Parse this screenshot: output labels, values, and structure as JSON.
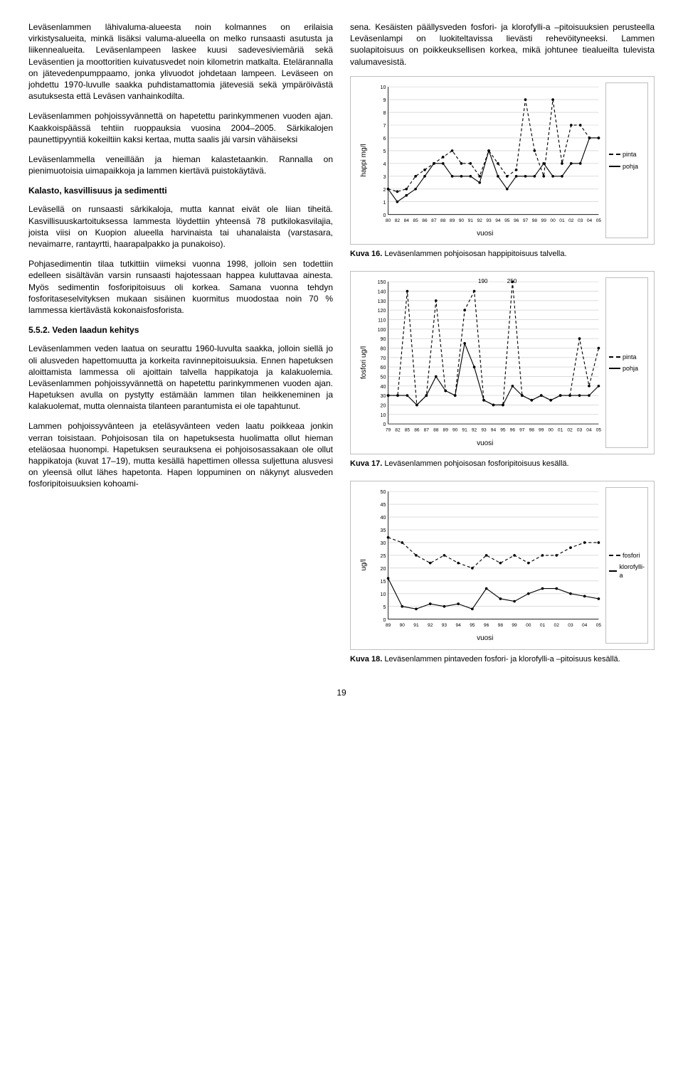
{
  "left": {
    "p1": "Leväsenlammen lähivaluma-alueesta noin kolmannes on erilaisia virkistysalueita, minkä lisäksi valuma-alueella on melko runsaasti asutusta ja liikennealueita. Leväsenlampeen laskee kuusi sadevesiviemäriä sekä Leväsentien ja moottoritien kuivatusvedet noin kilometrin matkalta. Etelärannalla on jätevedenpumppaamo, jonka ylivuodot johdetaan lampeen. Leväseen on johdettu 1970-luvulle saakka puhdistamattomia jätevesiä sekä ympäröivästä asutuksesta että Leväsen vanhainkodilta.",
    "p2": "Leväsenlammen pohjoissyvännettä on hapetettu parinkymmenen vuoden ajan. Kaakkoispäässä tehtiin ruoppauksia vuosina 2004–2005. Särkikalojen paunettipyyntiä kokeiltiin kaksi kertaa, mutta saalis jäi varsin vähäiseksi",
    "p3": "Leväsenlammella veneillään ja hieman kalastetaankin. Rannalla on pienimuotoisia uimapaikkoja ja lammen kiertävä puistokäytävä.",
    "h1": "Kalasto, kasvillisuus ja sedimentti",
    "p4": "Leväsellä on runsaasti särkikaloja, mutta kannat eivät ole liian tiheitä. Kasvillisuuskartoituksessa lammesta löydettiin yhteensä 78 putkilokasvilajia, joista viisi on Kuopion alueella harvinaista tai uhanalaista (varstasara, nevaimarre, rantayrtti, haarapalpakko ja punakoiso).",
    "p5": "Pohjasedimentin tilaa tutkittiin viimeksi vuonna 1998, jolloin sen todettiin edelleen sisältävän varsin runsaasti hajotessaan happea kuluttavaa ainesta. Myös sedimentin fosforipitoisuus oli korkea. Samana vuonna tehdyn fosforitaseselvityksen mukaan sisäinen kuormitus muodostaa noin 70 % lammessa kiertävästä kokonaisfosforista.",
    "h2": "5.5.2. Veden laadun kehitys",
    "p6": "Leväsenlammen veden laatua on seurattu 1960-luvulta saakka, jolloin siellä jo oli alusveden hapettomuutta ja korkeita ravinnepitoisuuksia. Ennen hapetuksen aloittamista lammessa oli ajoittain talvella happikatoja ja kalakuolemia. Leväsenlammen pohjoissyvännettä on hapetettu parinkymmenen vuoden ajan. Hapetuksen avulla on pystytty estämään lammen tilan heikkeneminen ja kalakuolemat, mutta olennaista tilanteen parantumista ei ole tapahtunut.",
    "p7": "Lammen pohjoissyvänteen ja eteläsyvänteen veden laatu poikkeaa jonkin verran toisistaan. Pohjoisosan tila on hapetuksesta huolimatta ollut hieman eteläosaa huonompi. Hapetuksen seurauksena ei pohjoisosassakaan ole ollut happikatoja (kuvat 17–19), mutta kesällä hapettimen ollessa suljettuna alusvesi on yleensä ollut lähes hapetonta. Hapen loppuminen on näkynyt alusveden fosforipitoisuuksien kohoami-"
  },
  "right": {
    "p1": "sena. Kesäisten päällysveden fosfori- ja klorofylli-a –pitoisuuksien perusteella Leväsenlampi on luokiteltavissa lievästi rehevöityneeksi. Lammen suolapitoisuus on poikkeuksellisen korkea, mikä johtunee tiealueilta tulevista valumavesistä."
  },
  "chart1": {
    "ylabel": "happi mg/l",
    "xlabel": "vuosi",
    "yticks": [
      0,
      1,
      2,
      3,
      4,
      5,
      6,
      7,
      8,
      9,
      10
    ],
    "ymax": 10,
    "xtick_labels": [
      "80",
      "82",
      "84",
      "85",
      "86",
      "87",
      "88",
      "89",
      "90",
      "91",
      "92",
      "93",
      "94",
      "95",
      "96",
      "97",
      "98",
      "99",
      "00",
      "01",
      "02",
      "03",
      "04",
      "05"
    ],
    "legend": [
      {
        "label": "pinta",
        "style": "dashed"
      },
      {
        "label": "pohja",
        "style": "solid"
      }
    ],
    "series_pinta": [
      2,
      1.8,
      2,
      3,
      3.5,
      4,
      4.5,
      5,
      4,
      4,
      3,
      5,
      4,
      3,
      3.5,
      9,
      5,
      3,
      9,
      4,
      7,
      7,
      6,
      6
    ],
    "series_pohja": [
      2,
      1,
      1.5,
      2,
      3,
      4,
      4,
      3,
      3,
      3,
      2.5,
      5,
      3,
      2,
      3,
      3,
      3,
      4,
      3,
      3,
      4,
      4,
      6,
      6
    ],
    "caption_label": "Kuva 16.",
    "caption_text": "Leväsenlammen pohjoisosan happipitoisuus talvella."
  },
  "chart2": {
    "ylabel": "fosfori ug/l",
    "xlabel": "vuosi",
    "yticks": [
      0,
      10,
      20,
      30,
      40,
      50,
      60,
      70,
      80,
      90,
      100,
      110,
      120,
      130,
      140,
      150
    ],
    "ymax": 150,
    "outliers": [
      "190",
      "250"
    ],
    "xtick_labels": [
      "79",
      "82",
      "85",
      "86",
      "87",
      "88",
      "89",
      "90",
      "91",
      "92",
      "93",
      "94",
      "95",
      "96",
      "97",
      "98",
      "99",
      "00",
      "01",
      "02",
      "03",
      "04",
      "05"
    ],
    "legend": [
      {
        "label": "pinta",
        "style": "dashed"
      },
      {
        "label": "pohja",
        "style": "solid"
      }
    ],
    "series_pinta": [
      30,
      30,
      140,
      20,
      30,
      130,
      35,
      30,
      120,
      140,
      25,
      20,
      20,
      150,
      30,
      25,
      30,
      25,
      30,
      30,
      90,
      40,
      80
    ],
    "series_pohja": [
      30,
      30,
      30,
      20,
      30,
      50,
      35,
      30,
      85,
      60,
      25,
      20,
      20,
      40,
      30,
      25,
      30,
      25,
      30,
      30,
      30,
      30,
      40
    ],
    "caption_label": "Kuva 17.",
    "caption_text": "Leväsenlammen pohjoisosan fosforipitoisuus kesällä."
  },
  "chart3": {
    "ylabel": "ug/l",
    "xlabel": "vuosi",
    "yticks": [
      0,
      5,
      10,
      15,
      20,
      25,
      30,
      35,
      40,
      45,
      50
    ],
    "ymax": 50,
    "xtick_labels": [
      "89",
      "90",
      "91",
      "92",
      "93",
      "94",
      "95",
      "96",
      "98",
      "99",
      "00",
      "01",
      "02",
      "03",
      "04",
      "05"
    ],
    "legend": [
      {
        "label": "fosfori",
        "style": "dashed"
      },
      {
        "label": "klorofylli-a",
        "style": "solid"
      }
    ],
    "series_fosfori": [
      32,
      30,
      25,
      22,
      25,
      22,
      20,
      25,
      22,
      25,
      22,
      25,
      25,
      28,
      30,
      30
    ],
    "series_kloro": [
      16,
      5,
      4,
      6,
      5,
      6,
      4,
      12,
      8,
      7,
      10,
      12,
      12,
      10,
      9,
      8
    ],
    "caption_label": "Kuva 18.",
    "caption_text": "Leväsenlammen pintaveden fosfori- ja klorofylli-a –pitoisuus kesällä."
  },
  "page_number": "19"
}
